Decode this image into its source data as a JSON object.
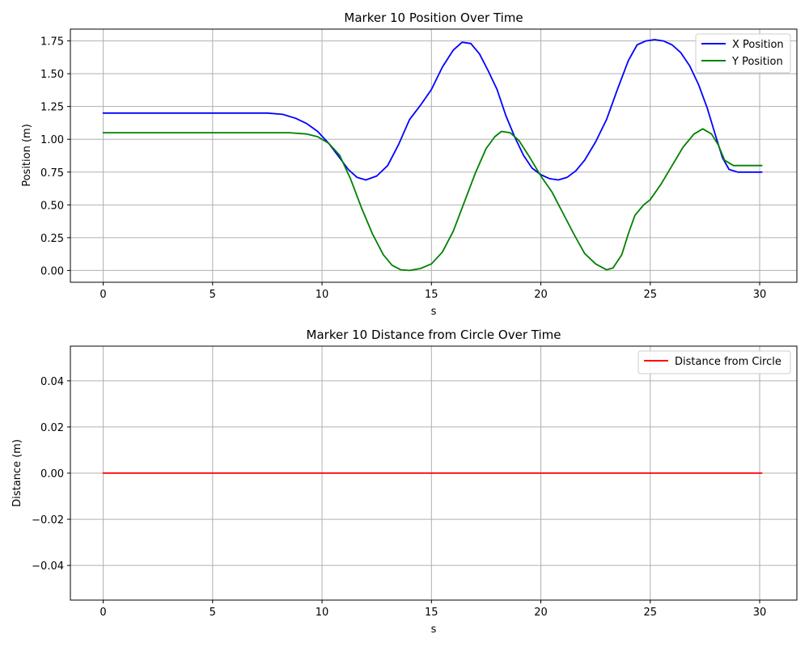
{
  "chart_data": [
    {
      "type": "line",
      "title": "Marker 10 Position Over Time",
      "xlabel": "s",
      "ylabel": "Position (m)",
      "xlim": [
        -1.5,
        31.7
      ],
      "ylim": [
        -0.09,
        1.84
      ],
      "xticks": [
        0,
        5,
        10,
        15,
        20,
        25,
        30
      ],
      "xtick_labels": [
        "0",
        "5",
        "10",
        "15",
        "20",
        "25",
        "30"
      ],
      "yticks": [
        0.0,
        0.25,
        0.5,
        0.75,
        1.0,
        1.25,
        1.5,
        1.75
      ],
      "ytick_labels": [
        "0.00",
        "0.25",
        "0.50",
        "0.75",
        "1.00",
        "1.25",
        "1.50",
        "1.75"
      ],
      "grid": true,
      "legend": "top-right",
      "series": [
        {
          "name": "X Position",
          "color": "#0000ff",
          "x": [
            0,
            2,
            4,
            6,
            7.5,
            8.2,
            8.8,
            9.3,
            9.8,
            10.3,
            10.8,
            11.2,
            11.6,
            12.0,
            12.5,
            13.0,
            13.5,
            14.0,
            14.5,
            15.0,
            15.5,
            16.0,
            16.4,
            16.8,
            17.2,
            17.6,
            18.0,
            18.4,
            18.8,
            19.2,
            19.6,
            20.0,
            20.4,
            20.8,
            21.2,
            21.6,
            22.0,
            22.5,
            23.0,
            23.5,
            24.0,
            24.4,
            24.8,
            25.2,
            25.6,
            26.0,
            26.4,
            26.8,
            27.2,
            27.6,
            28.0,
            28.3,
            28.6,
            29.0,
            29.5,
            30.1
          ],
          "y": [
            1.2,
            1.2,
            1.2,
            1.2,
            1.2,
            1.19,
            1.16,
            1.12,
            1.06,
            0.97,
            0.86,
            0.77,
            0.71,
            0.69,
            0.72,
            0.8,
            0.96,
            1.15,
            1.26,
            1.38,
            1.55,
            1.68,
            1.74,
            1.73,
            1.65,
            1.52,
            1.38,
            1.18,
            1.02,
            0.88,
            0.78,
            0.73,
            0.7,
            0.69,
            0.71,
            0.76,
            0.84,
            0.98,
            1.15,
            1.38,
            1.6,
            1.72,
            1.75,
            1.76,
            1.75,
            1.72,
            1.66,
            1.56,
            1.42,
            1.24,
            1.02,
            0.86,
            0.77,
            0.75,
            0.75,
            0.75
          ]
        },
        {
          "name": "Y Position",
          "color": "#008000",
          "x": [
            0,
            2,
            4,
            6,
            7.5,
            8.5,
            9.3,
            9.8,
            10.3,
            10.8,
            11.3,
            11.8,
            12.3,
            12.8,
            13.2,
            13.6,
            14.0,
            14.5,
            15.0,
            15.5,
            16.0,
            16.5,
            17.0,
            17.5,
            17.9,
            18.2,
            18.6,
            19.0,
            19.5,
            20.0,
            20.5,
            21.0,
            21.5,
            22.0,
            22.5,
            23.0,
            23.3,
            23.7,
            24.0,
            24.3,
            24.7,
            25.0,
            25.5,
            26.0,
            26.5,
            27.0,
            27.4,
            27.8,
            28.1,
            28.4,
            28.8,
            29.5,
            30.1
          ],
          "y": [
            1.05,
            1.05,
            1.05,
            1.05,
            1.05,
            1.05,
            1.04,
            1.02,
            0.97,
            0.88,
            0.7,
            0.48,
            0.28,
            0.12,
            0.04,
            0.005,
            0.0,
            0.015,
            0.05,
            0.14,
            0.3,
            0.52,
            0.74,
            0.93,
            1.02,
            1.06,
            1.05,
            0.99,
            0.86,
            0.72,
            0.6,
            0.44,
            0.28,
            0.13,
            0.05,
            0.005,
            0.02,
            0.12,
            0.28,
            0.42,
            0.5,
            0.54,
            0.66,
            0.8,
            0.94,
            1.04,
            1.08,
            1.04,
            0.96,
            0.84,
            0.8,
            0.8,
            0.8
          ]
        }
      ]
    },
    {
      "type": "line",
      "title": "Marker 10 Distance from Circle Over Time",
      "xlabel": "s",
      "ylabel": "Distance (m)",
      "xlim": [
        -1.5,
        31.7
      ],
      "ylim": [
        -0.055,
        0.055
      ],
      "xticks": [
        0,
        5,
        10,
        15,
        20,
        25,
        30
      ],
      "xtick_labels": [
        "0",
        "5",
        "10",
        "15",
        "20",
        "25",
        "30"
      ],
      "yticks": [
        -0.04,
        -0.02,
        0.0,
        0.02,
        0.04
      ],
      "ytick_labels": [
        "−0.04",
        "−0.02",
        "0.00",
        "0.02",
        "0.04"
      ],
      "grid": true,
      "legend": "top-right",
      "series": [
        {
          "name": "Distance from Circle",
          "color": "#ff0000",
          "x": [
            0,
            30.1
          ],
          "y": [
            0.0,
            0.0
          ]
        }
      ]
    }
  ]
}
